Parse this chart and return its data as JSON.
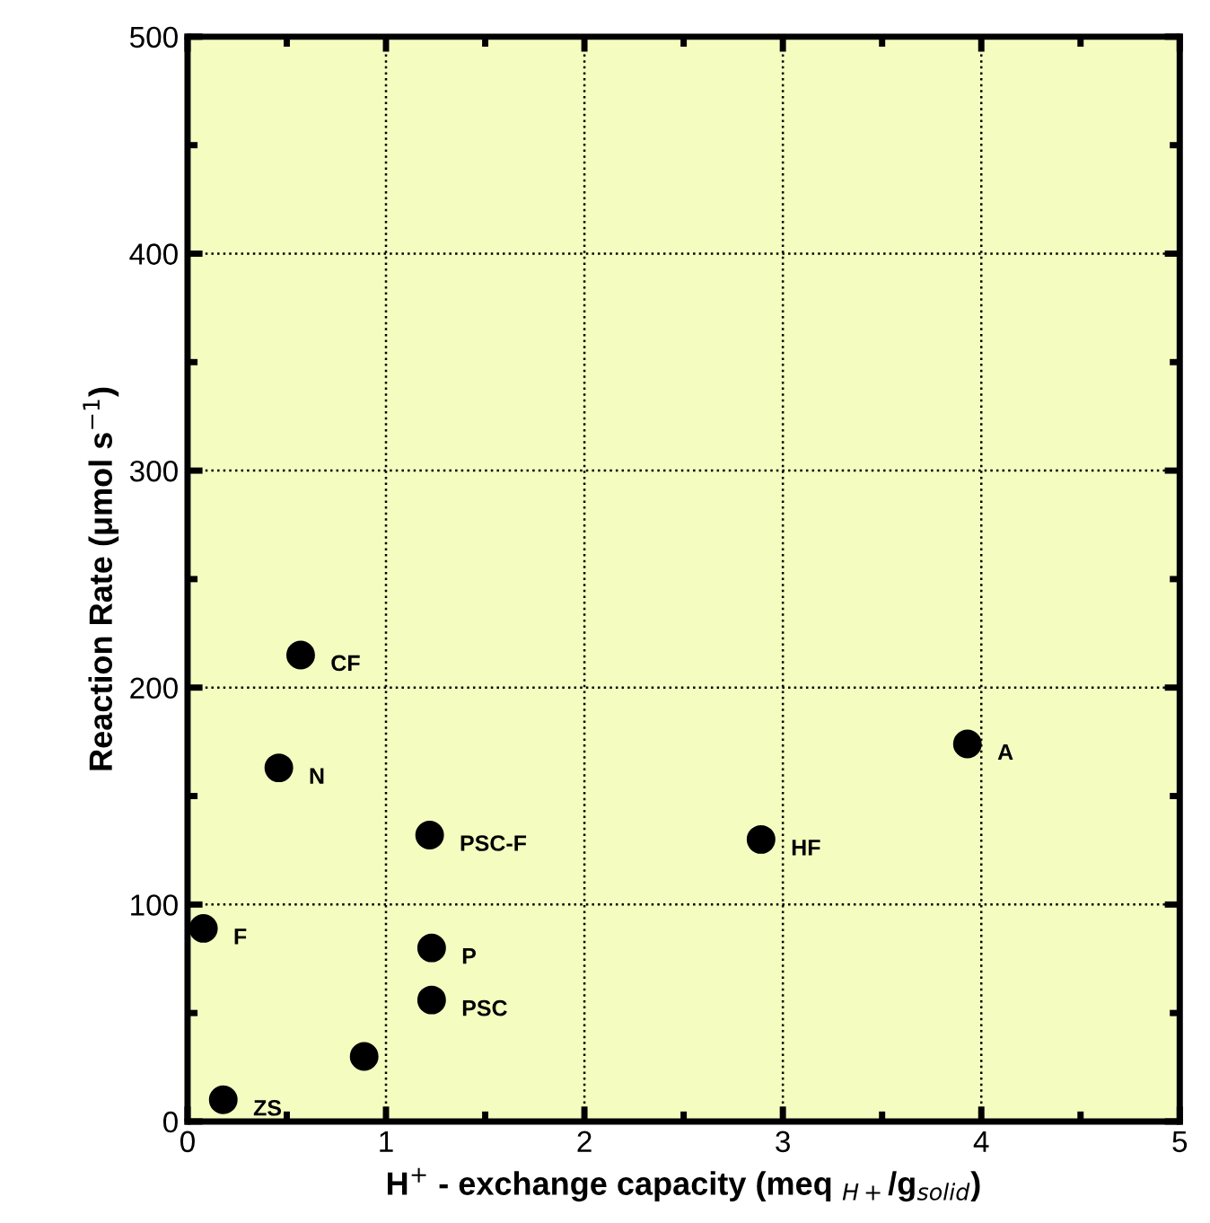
{
  "chart_data": {
    "type": "scatter",
    "xlabel": "H$^{+}$ - exchange capacity (meq $_{H+}$/g$_{solid}$)",
    "ylabel": "Reaction Rate (μmol s$^{−1}$)",
    "x": [
      0.57,
      0.46,
      1.22,
      0.08,
      1.23,
      1.23,
      0.89,
      0.18,
      3.93,
      2.89
    ],
    "series": [
      {
        "color": "#000000",
        "values": [
          215,
          163,
          132,
          89,
          80,
          56,
          30,
          10,
          174,
          130
        ]
      }
    ],
    "annotations": [
      {
        "text": "CF",
        "x": 0.57,
        "y": 215
      },
      {
        "text": "N",
        "x": 0.46,
        "y": 163
      },
      {
        "text": "PSC-F",
        "x": 1.22,
        "y": 132
      },
      {
        "text": "F",
        "x": 0.08,
        "y": 89
      },
      {
        "text": "P",
        "x": 1.23,
        "y": 80
      },
      {
        "text": "PSC",
        "x": 1.23,
        "y": 56
      },
      {
        "text": "ZS",
        "x": 0.18,
        "y": 10
      },
      {
        "text": "A",
        "x": 3.93,
        "y": 174
      },
      {
        "text": "HF",
        "x": 2.89,
        "y": 130
      }
    ],
    "xlim": [
      0,
      5
    ],
    "ylim": [
      0,
      500
    ],
    "xticks": [
      0,
      1,
      2,
      3,
      4,
      5
    ],
    "yticks": [
      0,
      100,
      200,
      300,
      400,
      500
    ],
    "grid": true,
    "marker": "circle",
    "legend": false
  }
}
